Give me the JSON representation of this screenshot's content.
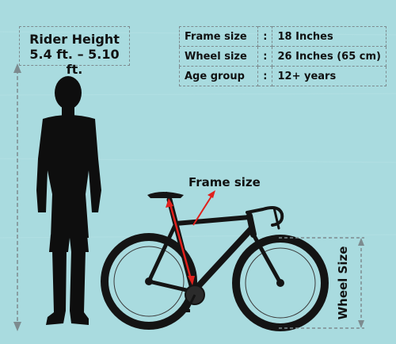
{
  "rider": {
    "title": "Rider Height",
    "range": "5.4 ft. – 5.10 ft."
  },
  "specs": [
    {
      "key": "Frame size",
      "sep": ":",
      "value": "18 Inches"
    },
    {
      "key": "Wheel size",
      "sep": ":",
      "value": "26 Inches (65 cm)"
    },
    {
      "key": "Age group",
      "sep": ":",
      "value": "12+ years"
    }
  ],
  "labels": {
    "frame": "Frame size",
    "wheel": "Wheel Size"
  },
  "colors": {
    "background": "#a9dbdf",
    "arrow_red": "#e0201c",
    "frame_black": "#141414"
  }
}
